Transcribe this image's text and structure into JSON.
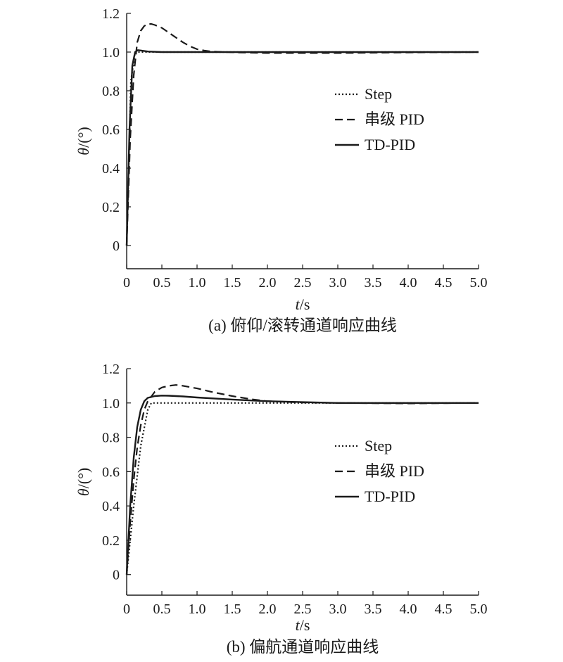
{
  "figure": {
    "colors": {
      "ink": "#1a1a1a",
      "background": "#ffffff"
    }
  },
  "chart_data": [
    {
      "type": "line",
      "caption": "(a) 俯仰/滚转通道响应曲线",
      "xlabel_var": "t",
      "xlabel_unit": "/s",
      "ylabel_var": "θ",
      "ylabel_unit": "/(°)",
      "xlim": [
        0,
        5.0
      ],
      "ylim": [
        -0.12,
        1.2
      ],
      "xticks": [
        "0",
        "0.5",
        "1.0",
        "1.5",
        "2.0",
        "2.5",
        "3.0",
        "3.5",
        "4.0",
        "4.5",
        "5.0"
      ],
      "yticks": [
        "0",
        "0.2",
        "0.4",
        "0.6",
        "0.8",
        "1.0",
        "1.2"
      ],
      "grid": false,
      "legend_position": "right-middle",
      "series": [
        {
          "name": "Step",
          "style": "dotted",
          "x": [
            0,
            0.06,
            0.12,
            0.5,
            1.0,
            2.0,
            3.0,
            4.0,
            5.0
          ],
          "y": [
            0,
            0.85,
            1.0,
            1.0,
            1.0,
            1.0,
            1.0,
            1.0,
            1.0
          ]
        },
        {
          "name": "串级 PID",
          "style": "dashed",
          "x": [
            0,
            0.05,
            0.1,
            0.15,
            0.2,
            0.25,
            0.3,
            0.35,
            0.4,
            0.5,
            0.6,
            0.7,
            0.8,
            0.9,
            1.0,
            1.1,
            1.2,
            1.4,
            1.6,
            2.0,
            3.0,
            4.0,
            5.0
          ],
          "y": [
            0,
            0.55,
            0.88,
            1.05,
            1.11,
            1.135,
            1.145,
            1.145,
            1.14,
            1.125,
            1.1,
            1.075,
            1.05,
            1.03,
            1.015,
            1.008,
            1.003,
            1.0,
            0.998,
            0.995,
            0.995,
            0.998,
            1.0
          ]
        },
        {
          "name": "TD-PID",
          "style": "solid",
          "x": [
            0,
            0.04,
            0.08,
            0.12,
            0.16,
            0.2,
            0.3,
            0.5,
            1.0,
            2.0,
            3.0,
            4.0,
            5.0
          ],
          "y": [
            0,
            0.6,
            0.93,
            1.0,
            1.01,
            1.008,
            1.003,
            1.0,
            1.0,
            1.0,
            1.0,
            1.0,
            1.0
          ]
        }
      ]
    },
    {
      "type": "line",
      "caption": "(b) 偏航通道响应曲线",
      "xlabel_var": "t",
      "xlabel_unit": "/s",
      "ylabel_var": "θ",
      "ylabel_unit": "/(°)",
      "xlim": [
        0,
        5.0
      ],
      "ylim": [
        -0.12,
        1.2
      ],
      "xticks": [
        "0",
        "0.5",
        "1.0",
        "1.5",
        "2.0",
        "2.5",
        "3.0",
        "3.5",
        "4.0",
        "4.5",
        "5.0"
      ],
      "yticks": [
        "0",
        "0.2",
        "0.4",
        "0.6",
        "0.8",
        "1.0",
        "1.2"
      ],
      "grid": false,
      "legend_position": "right-middle",
      "series": [
        {
          "name": "Step",
          "style": "dotted",
          "x": [
            0,
            0.1,
            0.2,
            0.3,
            0.35,
            0.5,
            1.0,
            2.0,
            3.0,
            4.0,
            5.0
          ],
          "y": [
            0,
            0.4,
            0.75,
            0.96,
            1.0,
            1.0,
            1.0,
            1.0,
            1.0,
            1.0,
            1.0
          ]
        },
        {
          "name": "串级 PID",
          "style": "dashed",
          "x": [
            0,
            0.05,
            0.1,
            0.15,
            0.2,
            0.25,
            0.3,
            0.4,
            0.5,
            0.6,
            0.7,
            0.8,
            1.0,
            1.2,
            1.5,
            1.8,
            2.0,
            2.5,
            3.0,
            4.0,
            5.0
          ],
          "y": [
            0,
            0.3,
            0.55,
            0.74,
            0.87,
            0.96,
            1.01,
            1.065,
            1.09,
            1.1,
            1.105,
            1.1,
            1.085,
            1.065,
            1.04,
            1.02,
            1.01,
            1.003,
            1.0,
            0.997,
            1.0
          ]
        },
        {
          "name": "TD-PID",
          "style": "solid",
          "x": [
            0,
            0.05,
            0.1,
            0.15,
            0.2,
            0.25,
            0.3,
            0.4,
            0.5,
            0.6,
            0.7,
            0.8,
            1.0,
            1.5,
            2.0,
            2.5,
            3.0,
            4.0,
            5.0
          ],
          "y": [
            0,
            0.4,
            0.68,
            0.86,
            0.96,
            1.01,
            1.03,
            1.04,
            1.043,
            1.042,
            1.04,
            1.038,
            1.032,
            1.02,
            1.01,
            1.005,
            1.0,
            1.0,
            1.0
          ]
        }
      ]
    }
  ]
}
